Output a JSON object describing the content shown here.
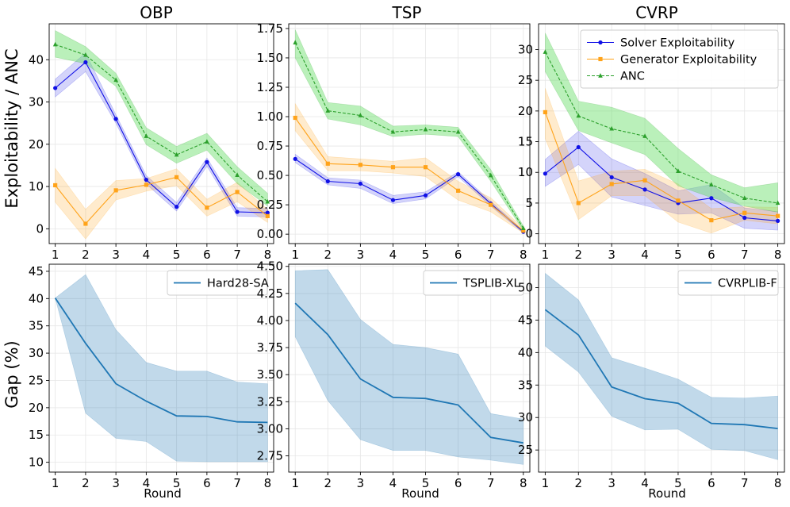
{
  "figure": {
    "col_titles": [
      "OBP",
      "TSP",
      "CVRP"
    ],
    "row_ylabels": [
      "Exploitability / ANC",
      "Gap (%)"
    ],
    "xlabel": "Round"
  },
  "colors": {
    "solver": "#1010e6",
    "generator": "#ffa31a",
    "anc": "#2ca02c",
    "anc_fill": "#66dd66",
    "gap": "#1f77b4"
  },
  "chart_data": [
    {
      "id": "obp-exploit",
      "type": "line",
      "title": "OBP",
      "xlabel": "",
      "ylabel": "Exploitability / ANC",
      "x": [
        1,
        2,
        3,
        4,
        5,
        6,
        7,
        8
      ],
      "xlim": [
        0.8,
        8.2
      ],
      "ylim": [
        -3.5,
        48.5
      ],
      "yticks": [
        0,
        10,
        20,
        30,
        40
      ],
      "series": [
        {
          "name": "Solver Exploitability",
          "style": "solver",
          "values": [
            33.3,
            39.4,
            26,
            11.6,
            5.2,
            15.8,
            4,
            3.8
          ],
          "lower": [
            31.2,
            37.2,
            25,
            10.6,
            4.2,
            14.8,
            3,
            2.8
          ],
          "upper": [
            35.4,
            41.6,
            27,
            12.6,
            6.2,
            16.8,
            5,
            4.8
          ]
        },
        {
          "name": "Generator Exploitability",
          "style": "generator",
          "values": [
            10.3,
            1.2,
            9.1,
            10.4,
            12.2,
            5,
            8.7,
            3
          ],
          "lower": [
            6.3,
            -2.4,
            6.8,
            8.9,
            10.2,
            3,
            6.4,
            1.5
          ],
          "upper": [
            14.3,
            4.6,
            11.4,
            11.9,
            14.2,
            7,
            11,
            4.5
          ]
        },
        {
          "name": "ANC",
          "style": "anc",
          "values": [
            43.6,
            41.1,
            35.2,
            21.9,
            17.5,
            20.6,
            12.7,
            6.4
          ],
          "lower": [
            40.6,
            39.1,
            33.7,
            19.9,
            15.5,
            18.6,
            10.7,
            5.4
          ],
          "upper": [
            46.9,
            43.1,
            36.8,
            23.9,
            19.5,
            22.6,
            14.7,
            8.4
          ]
        }
      ]
    },
    {
      "id": "tsp-exploit",
      "type": "line",
      "title": "TSP",
      "xlabel": "",
      "ylabel": "",
      "x": [
        1,
        2,
        3,
        4,
        5,
        6,
        7,
        8
      ],
      "xlim": [
        0.8,
        8.2
      ],
      "ylim": [
        -0.08,
        1.79
      ],
      "yticks": [
        "0.00",
        "0.25",
        "0.50",
        "0.75",
        "1.00",
        "1.25",
        "1.50",
        "1.75"
      ],
      "series": [
        {
          "name": "Solver Exploitability",
          "style": "solver",
          "values": [
            0.64,
            0.45,
            0.43,
            0.29,
            0.33,
            0.51,
            0.26,
            0.02
          ],
          "lower": [
            0.61,
            0.42,
            0.39,
            0.26,
            0.3,
            0.49,
            0.24,
            0.01
          ],
          "upper": [
            0.68,
            0.48,
            0.46,
            0.33,
            0.36,
            0.53,
            0.28,
            0.03
          ]
        },
        {
          "name": "Generator Exploitability",
          "style": "generator",
          "values": [
            0.99,
            0.6,
            0.59,
            0.57,
            0.57,
            0.37,
            0.25,
            0.03
          ],
          "lower": [
            0.88,
            0.54,
            0.54,
            0.52,
            0.49,
            0.29,
            0.19,
            0.01
          ],
          "upper": [
            1.11,
            0.66,
            0.64,
            0.62,
            0.65,
            0.45,
            0.31,
            0.05
          ]
        },
        {
          "name": "ANC",
          "style": "anc",
          "values": [
            1.63,
            1.05,
            1.01,
            0.87,
            0.89,
            0.87,
            0.5,
            0.05
          ],
          "lower": [
            1.5,
            0.98,
            0.93,
            0.83,
            0.85,
            0.83,
            0.45,
            0.03
          ],
          "upper": [
            1.74,
            1.12,
            1.09,
            0.92,
            0.93,
            0.91,
            0.55,
            0.07
          ]
        }
      ]
    },
    {
      "id": "cvrp-exploit",
      "type": "line",
      "title": "CVRP",
      "xlabel": "",
      "ylabel": "",
      "x": [
        1,
        2,
        3,
        4,
        5,
        6,
        7,
        8
      ],
      "xlim": [
        0.8,
        8.2
      ],
      "ylim": [
        -1.6,
        34.2
      ],
      "yticks": [
        0,
        5,
        10,
        15,
        20,
        25,
        30
      ],
      "series": [
        {
          "name": "Solver Exploitability",
          "style": "solver",
          "values": [
            9.8,
            14.1,
            9.2,
            7.2,
            5,
            5.8,
            2.6,
            2.1
          ],
          "lower": [
            7.7,
            11.3,
            6,
            4.6,
            3.2,
            3.4,
            0.9,
            0.6
          ],
          "upper": [
            12.1,
            16.7,
            12.2,
            9.8,
            7,
            8,
            4.2,
            3.6
          ]
        },
        {
          "name": "Generator Exploitability",
          "style": "generator",
          "values": [
            19.8,
            5,
            8.1,
            8.7,
            5.4,
            2.2,
            3.4,
            2.9
          ],
          "lower": [
            15.5,
            2.3,
            6.2,
            6.2,
            1.9,
            0.1,
            2.2,
            1.6
          ],
          "upper": [
            23.7,
            8.6,
            10.2,
            10.5,
            8.1,
            4.1,
            4.4,
            4.3
          ]
        },
        {
          "name": "ANC",
          "style": "anc",
          "values": [
            29.6,
            19.2,
            17.1,
            15.9,
            10.2,
            8,
            5.8,
            5
          ],
          "lower": [
            26.4,
            16.8,
            14.8,
            12.9,
            7.8,
            5.9,
            4.5,
            3.5
          ],
          "upper": [
            32.7,
            21.6,
            20.6,
            18.8,
            13.9,
            9.6,
            7.5,
            8.3
          ]
        }
      ],
      "legend": {
        "placement": "top-right",
        "entries": [
          "Solver Exploitability",
          "Generator Exploitability",
          "ANC"
        ]
      }
    },
    {
      "id": "obp-gap",
      "type": "line",
      "title": "",
      "xlabel": "Round",
      "ylabel": "Gap (%)",
      "x": [
        1,
        2,
        3,
        4,
        5,
        6,
        7,
        8
      ],
      "xlim": [
        0.8,
        8.2
      ],
      "ylim": [
        8.2,
        46.3
      ],
      "yticks": [
        10,
        15,
        20,
        25,
        30,
        35,
        40,
        45
      ],
      "series": [
        {
          "name": "Hard28-SA",
          "style": "gap",
          "values": [
            40.1,
            31.8,
            24.4,
            21.2,
            18.5,
            18.4,
            17.4,
            17.3
          ],
          "lower": [
            40.1,
            19,
            14.4,
            13.8,
            10.2,
            10.1,
            10.1,
            10.1
          ],
          "upper": [
            40.1,
            44.4,
            34.3,
            28.3,
            26.7,
            26.7,
            24.7,
            24.4
          ]
        }
      ],
      "legend": {
        "placement": "top-right",
        "entries": [
          "Hard28-SA"
        ]
      }
    },
    {
      "id": "tsp-gap",
      "type": "line",
      "title": "",
      "xlabel": "Round",
      "ylabel": "",
      "x": [
        1,
        2,
        3,
        4,
        5,
        6,
        7,
        8
      ],
      "xlim": [
        0.8,
        8.2
      ],
      "ylim": [
        2.6,
        4.52
      ],
      "yticks": [
        "2.75",
        "3.00",
        "3.25",
        "3.50",
        "3.75",
        "4.00",
        "4.25",
        "4.50"
      ],
      "series": [
        {
          "name": "TSPLIB-XL",
          "style": "gap",
          "values": [
            4.16,
            3.87,
            3.46,
            3.29,
            3.28,
            3.22,
            2.92,
            2.87
          ],
          "lower": [
            3.85,
            3.26,
            2.9,
            2.8,
            2.8,
            2.74,
            2.71,
            2.67
          ],
          "upper": [
            4.46,
            4.47,
            4.01,
            3.78,
            3.75,
            3.69,
            3.14,
            3.09
          ]
        }
      ],
      "legend": {
        "placement": "top-right",
        "entries": [
          "TSPLIB-XL"
        ]
      }
    },
    {
      "id": "cvrp-gap",
      "type": "line",
      "title": "",
      "xlabel": "Round",
      "ylabel": "",
      "x": [
        1,
        2,
        3,
        4,
        5,
        6,
        7,
        8
      ],
      "xlim": [
        0.8,
        8.2
      ],
      "ylim": [
        21.6,
        53.6
      ],
      "yticks": [
        25,
        30,
        35,
        40,
        45,
        50
      ],
      "series": [
        {
          "name": "CVRPLIB-F",
          "style": "gap",
          "values": [
            46.6,
            42.7,
            34.7,
            32.9,
            32.2,
            29.1,
            28.9,
            28.3
          ],
          "lower": [
            41,
            37,
            30.2,
            28.1,
            28.2,
            25.1,
            24.9,
            23.5
          ],
          "upper": [
            52.2,
            48.1,
            39.2,
            37.6,
            35.9,
            33.1,
            33,
            33.3
          ]
        }
      ],
      "legend": {
        "placement": "top-right",
        "entries": [
          "CVRPLIB-F"
        ]
      }
    }
  ]
}
